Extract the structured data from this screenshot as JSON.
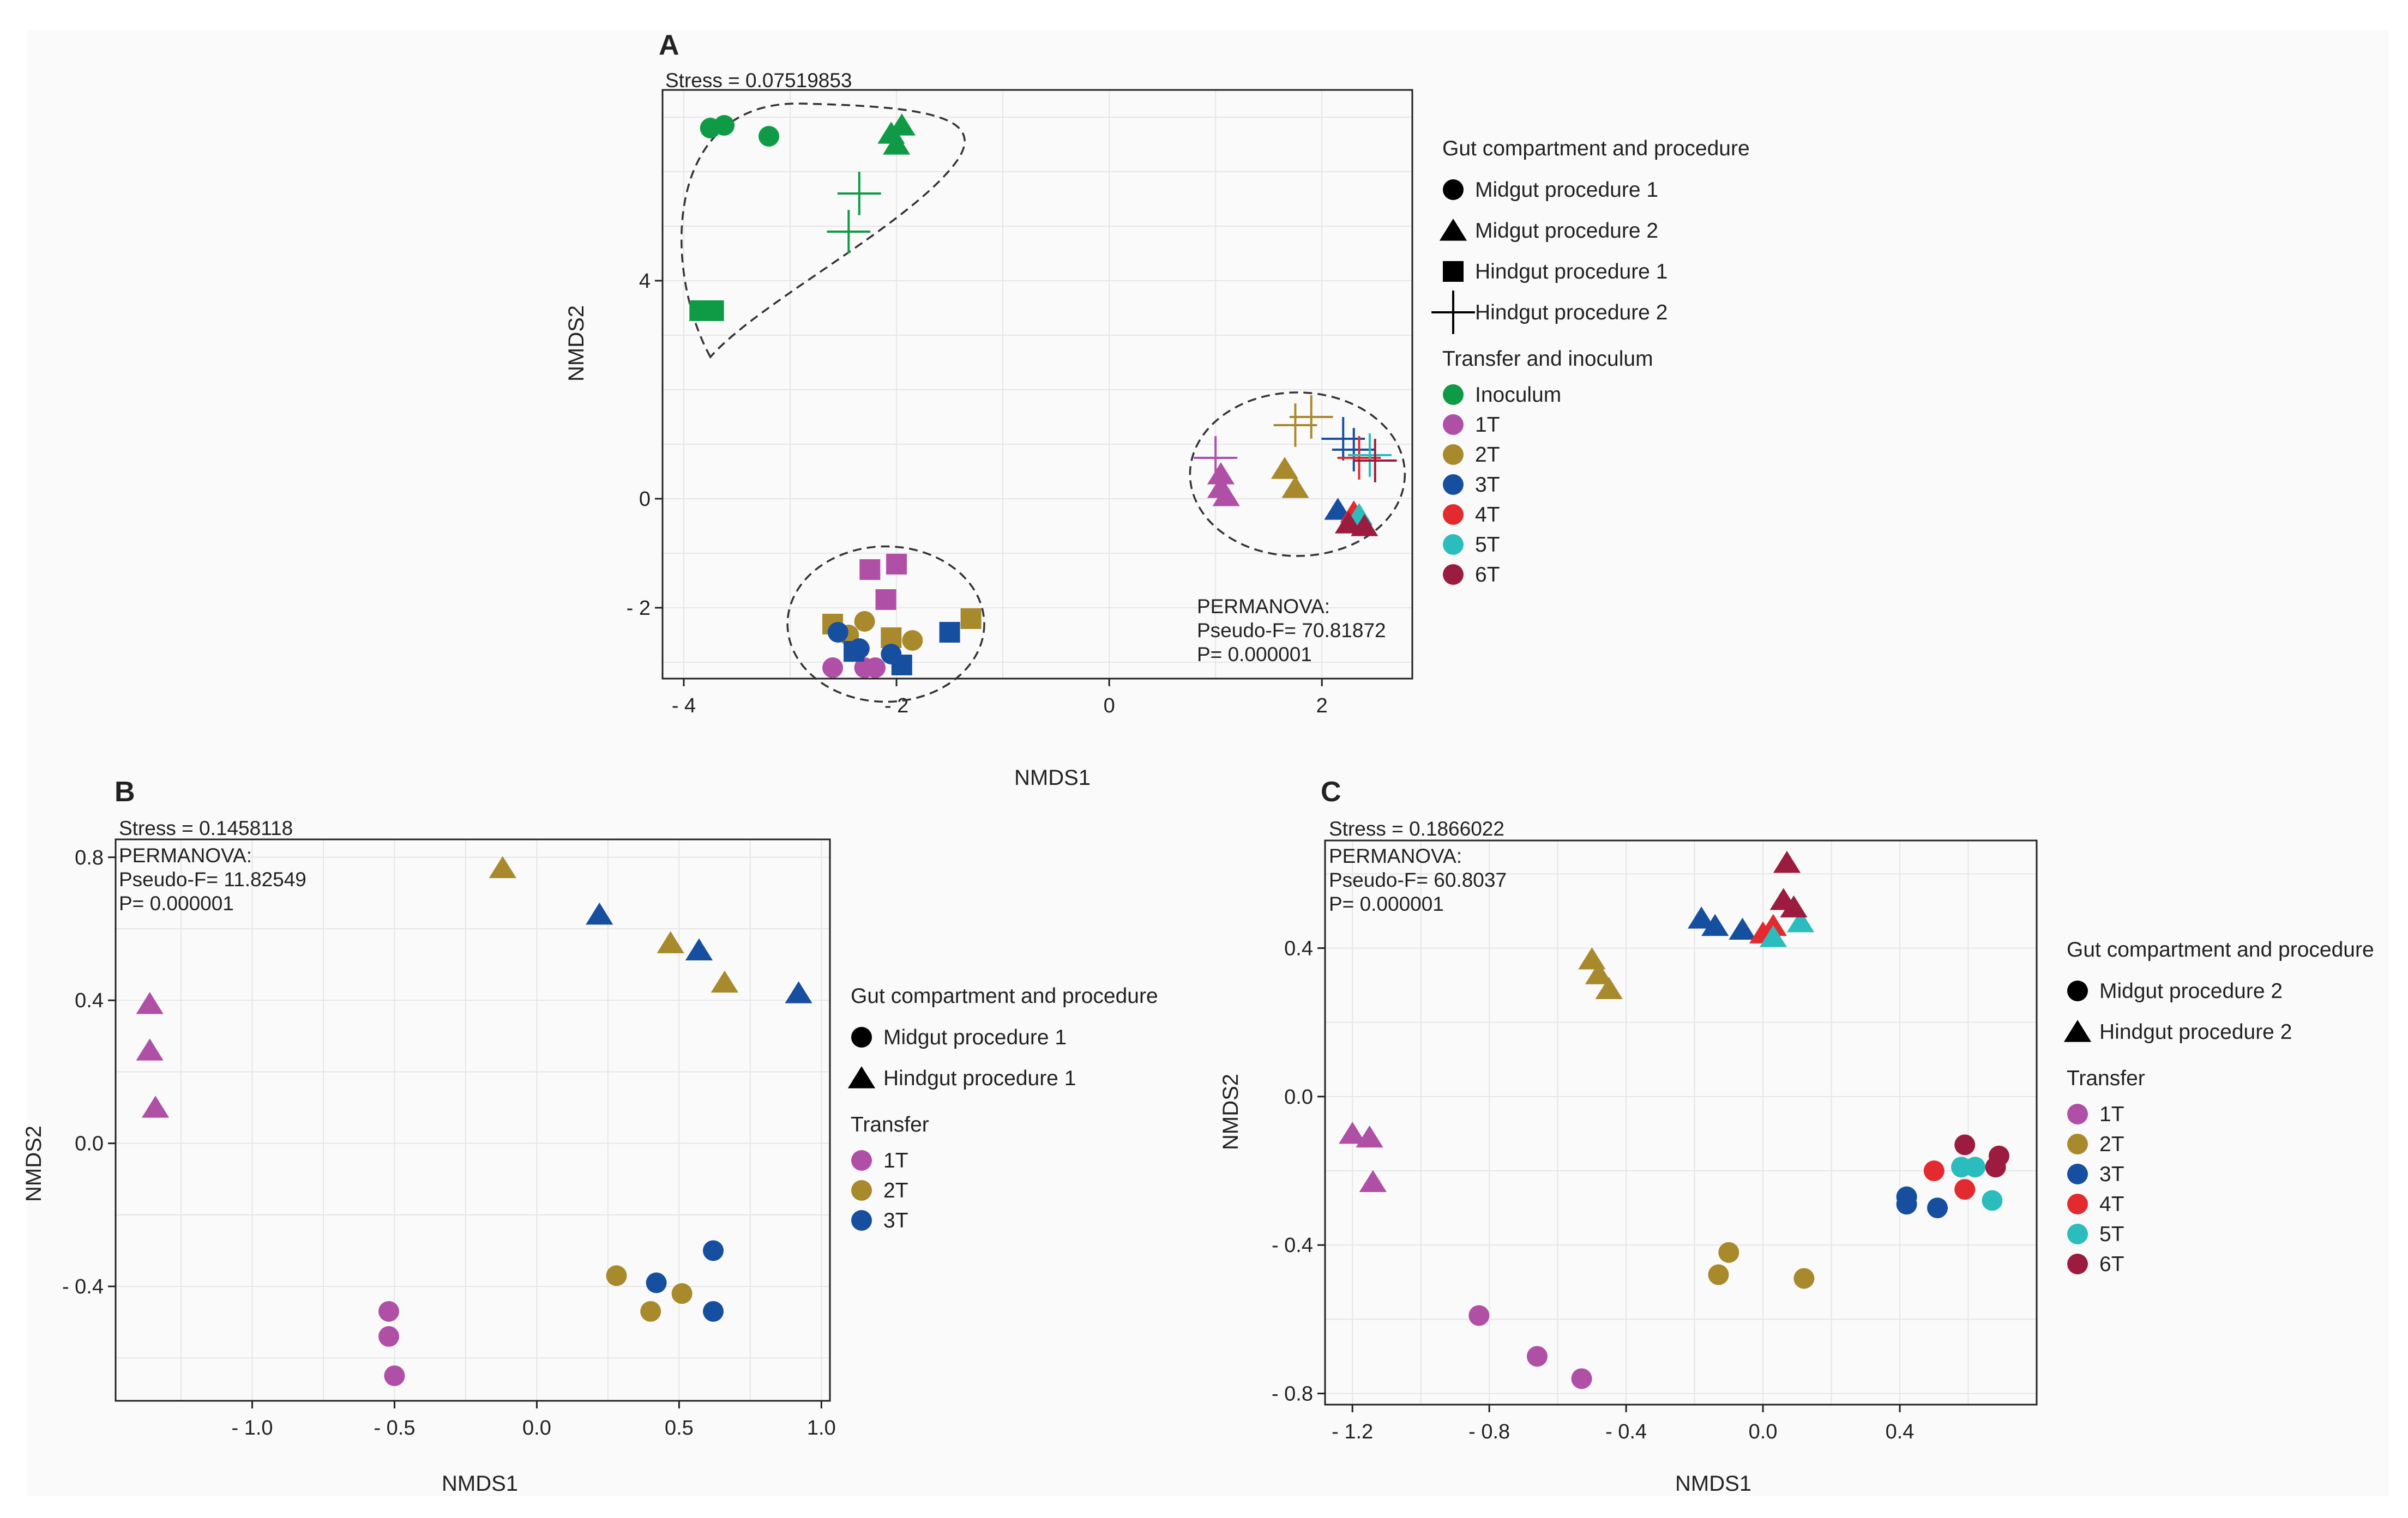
{
  "colors": {
    "Inoculum": "#0f9b45",
    "1T": "#b04fa6",
    "2T": "#a88a2c",
    "3T": "#174fa0",
    "4T": "#e32a2f",
    "5T": "#2bbdbd",
    "6T": "#9b1c3e",
    "black": "#000000"
  },
  "chart_data": [
    {
      "panel": "A",
      "type": "scatter",
      "stress": "Stress = 0.07519853",
      "permanova": [
        "PERMANOVA:",
        "Pseudo-F= 70.81872",
        "P= 0.000001"
      ],
      "xlabel": "NMDS1",
      "ylabel": "NMDS2",
      "xlim": [
        -4.2,
        2.85
      ],
      "ylim": [
        -3.3,
        7.5
      ],
      "xticks": [
        -4,
        -2,
        0,
        2
      ],
      "yticks": [
        -2,
        0,
        4
      ],
      "tick_labels_x": [
        "- 4",
        "- 2",
        "0",
        "2"
      ],
      "tick_labels_y": [
        "- 2",
        "0",
        "4"
      ],
      "legend_shape_title": "Gut compartment and procedure",
      "legend_shapes": [
        {
          "shape": "circle",
          "label": "Midgut procedure 1"
        },
        {
          "shape": "triangle",
          "label": "Midgut procedure 2"
        },
        {
          "shape": "square",
          "label": "Hindgut procedure 1"
        },
        {
          "shape": "cross",
          "label": "Hindgut procedure 2"
        }
      ],
      "legend_color_title": "Transfer and inoculum",
      "legend_colors": [
        {
          "group": "Inoculum",
          "label": "Inoculum"
        },
        {
          "group": "1T",
          "label": "1T"
        },
        {
          "group": "2T",
          "label": "2T"
        },
        {
          "group": "3T",
          "label": "3T"
        },
        {
          "group": "4T",
          "label": "4T"
        },
        {
          "group": "5T",
          "label": "5T"
        },
        {
          "group": "6T",
          "label": "6T"
        }
      ],
      "points": [
        {
          "x": -3.75,
          "y": 6.8,
          "shape": "circle",
          "group": "Inoculum"
        },
        {
          "x": -3.62,
          "y": 6.85,
          "shape": "circle",
          "group": "Inoculum"
        },
        {
          "x": -3.2,
          "y": 6.65,
          "shape": "circle",
          "group": "Inoculum"
        },
        {
          "x": -1.95,
          "y": 6.85,
          "shape": "triangle",
          "group": "Inoculum"
        },
        {
          "x": -2.05,
          "y": 6.7,
          "shape": "triangle",
          "group": "Inoculum"
        },
        {
          "x": -2.0,
          "y": 6.5,
          "shape": "triangle",
          "group": "Inoculum"
        },
        {
          "x": -2.35,
          "y": 5.6,
          "shape": "cross",
          "group": "Inoculum"
        },
        {
          "x": -2.45,
          "y": 4.9,
          "shape": "cross",
          "group": "Inoculum"
        },
        {
          "x": -3.85,
          "y": 3.45,
          "shape": "square",
          "group": "Inoculum"
        },
        {
          "x": -3.72,
          "y": 3.45,
          "shape": "square",
          "group": "Inoculum"
        },
        {
          "x": -2.0,
          "y": -1.2,
          "shape": "square",
          "group": "1T"
        },
        {
          "x": -2.25,
          "y": -1.3,
          "shape": "square",
          "group": "1T"
        },
        {
          "x": -2.1,
          "y": -1.85,
          "shape": "square",
          "group": "1T"
        },
        {
          "x": -2.6,
          "y": -3.1,
          "shape": "circle",
          "group": "1T"
        },
        {
          "x": -2.3,
          "y": -3.1,
          "shape": "circle",
          "group": "1T"
        },
        {
          "x": -2.2,
          "y": -3.1,
          "shape": "circle",
          "group": "1T"
        },
        {
          "x": -2.6,
          "y": -2.3,
          "shape": "square",
          "group": "2T"
        },
        {
          "x": -2.45,
          "y": -2.5,
          "shape": "circle",
          "group": "2T"
        },
        {
          "x": -2.3,
          "y": -2.25,
          "shape": "circle",
          "group": "2T"
        },
        {
          "x": -2.05,
          "y": -2.55,
          "shape": "square",
          "group": "2T"
        },
        {
          "x": -1.85,
          "y": -2.6,
          "shape": "circle",
          "group": "2T"
        },
        {
          "x": -1.3,
          "y": -2.2,
          "shape": "square",
          "group": "2T"
        },
        {
          "x": -2.55,
          "y": -2.45,
          "shape": "circle",
          "group": "3T"
        },
        {
          "x": -2.35,
          "y": -2.75,
          "shape": "circle",
          "group": "3T"
        },
        {
          "x": -2.4,
          "y": -2.8,
          "shape": "square",
          "group": "3T"
        },
        {
          "x": -2.05,
          "y": -2.85,
          "shape": "circle",
          "group": "3T"
        },
        {
          "x": -1.95,
          "y": -3.05,
          "shape": "square",
          "group": "3T"
        },
        {
          "x": -1.5,
          "y": -2.45,
          "shape": "square",
          "group": "3T"
        },
        {
          "x": 1.0,
          "y": 0.75,
          "shape": "cross",
          "group": "1T"
        },
        {
          "x": 1.05,
          "y": 0.45,
          "shape": "triangle",
          "group": "1T"
        },
        {
          "x": 1.05,
          "y": 0.2,
          "shape": "triangle",
          "group": "1T"
        },
        {
          "x": 1.1,
          "y": 0.05,
          "shape": "triangle",
          "group": "1T"
        },
        {
          "x": 1.75,
          "y": 1.35,
          "shape": "cross",
          "group": "2T"
        },
        {
          "x": 1.9,
          "y": 1.5,
          "shape": "cross",
          "group": "2T"
        },
        {
          "x": 1.65,
          "y": 0.55,
          "shape": "triangle",
          "group": "2T"
        },
        {
          "x": 1.75,
          "y": 0.2,
          "shape": "triangle",
          "group": "2T"
        },
        {
          "x": 2.2,
          "y": 1.1,
          "shape": "cross",
          "group": "3T"
        },
        {
          "x": 2.3,
          "y": 0.9,
          "shape": "cross",
          "group": "3T"
        },
        {
          "x": 2.15,
          "y": -0.2,
          "shape": "triangle",
          "group": "3T"
        },
        {
          "x": 2.3,
          "y": -0.35,
          "shape": "triangle",
          "group": "3T"
        },
        {
          "x": 2.35,
          "y": 0.75,
          "shape": "cross",
          "group": "4T"
        },
        {
          "x": 2.3,
          "y": -0.25,
          "shape": "triangle",
          "group": "4T"
        },
        {
          "x": 2.45,
          "y": 0.8,
          "shape": "cross",
          "group": "5T"
        },
        {
          "x": 2.35,
          "y": -0.3,
          "shape": "triangle",
          "group": "5T"
        },
        {
          "x": 2.5,
          "y": 0.7,
          "shape": "cross",
          "group": "6T"
        },
        {
          "x": 2.25,
          "y": -0.45,
          "shape": "triangle",
          "group": "6T"
        },
        {
          "x": 2.4,
          "y": -0.5,
          "shape": "triangle",
          "group": "6T"
        }
      ]
    },
    {
      "panel": "B",
      "type": "scatter",
      "stress": "Stress = 0.1458118",
      "permanova": [
        "PERMANOVA:",
        "Pseudo-F= 11.82549",
        "P= 0.000001"
      ],
      "xlabel": "NMDS1",
      "ylabel": "NMDS2",
      "xlim": [
        -1.48,
        1.03
      ],
      "ylim": [
        -0.72,
        0.85
      ],
      "xticks": [
        -1.0,
        -0.5,
        0.0,
        0.5,
        1.0
      ],
      "yticks": [
        -0.4,
        0.0,
        0.4,
        0.8
      ],
      "tick_labels_x": [
        "- 1.0",
        "- 0.5",
        "0.0",
        "0.5",
        "1.0"
      ],
      "tick_labels_y": [
        "- 0.4",
        "0.0",
        "0.4",
        "0.8"
      ],
      "legend_shape_title": "Gut compartment and procedure",
      "legend_shapes": [
        {
          "shape": "circle",
          "label": "Midgut procedure 1"
        },
        {
          "shape": "triangle",
          "label": "Hindgut procedure 1"
        }
      ],
      "legend_color_title": "Transfer",
      "legend_colors": [
        {
          "group": "1T",
          "label": "1T"
        },
        {
          "group": "2T",
          "label": "2T"
        },
        {
          "group": "3T",
          "label": "3T"
        }
      ],
      "points": [
        {
          "x": -1.36,
          "y": 0.39,
          "shape": "triangle",
          "group": "1T"
        },
        {
          "x": -1.36,
          "y": 0.26,
          "shape": "triangle",
          "group": "1T"
        },
        {
          "x": -1.34,
          "y": 0.1,
          "shape": "triangle",
          "group": "1T"
        },
        {
          "x": -0.52,
          "y": -0.47,
          "shape": "circle",
          "group": "1T"
        },
        {
          "x": -0.52,
          "y": -0.54,
          "shape": "circle",
          "group": "1T"
        },
        {
          "x": -0.5,
          "y": -0.65,
          "shape": "circle",
          "group": "1T"
        },
        {
          "x": -0.12,
          "y": 0.77,
          "shape": "triangle",
          "group": "2T"
        },
        {
          "x": 0.47,
          "y": 0.56,
          "shape": "triangle",
          "group": "2T"
        },
        {
          "x": 0.66,
          "y": 0.45,
          "shape": "triangle",
          "group": "2T"
        },
        {
          "x": 0.28,
          "y": -0.37,
          "shape": "circle",
          "group": "2T"
        },
        {
          "x": 0.4,
          "y": -0.47,
          "shape": "circle",
          "group": "2T"
        },
        {
          "x": 0.51,
          "y": -0.42,
          "shape": "circle",
          "group": "2T"
        },
        {
          "x": 0.22,
          "y": 0.64,
          "shape": "triangle",
          "group": "3T"
        },
        {
          "x": 0.57,
          "y": 0.54,
          "shape": "triangle",
          "group": "3T"
        },
        {
          "x": 0.92,
          "y": 0.42,
          "shape": "triangle",
          "group": "3T"
        },
        {
          "x": 0.42,
          "y": -0.39,
          "shape": "circle",
          "group": "3T"
        },
        {
          "x": 0.62,
          "y": -0.3,
          "shape": "circle",
          "group": "3T"
        },
        {
          "x": 0.62,
          "y": -0.47,
          "shape": "circle",
          "group": "3T"
        }
      ]
    },
    {
      "panel": "C",
      "type": "scatter",
      "stress": "Stress = 0.1866022",
      "permanova": [
        "PERMANOVA:",
        "Pseudo-F= 60.8037",
        "P= 0.000001"
      ],
      "xlabel": "NMDS1",
      "ylabel": "NMDS2",
      "xlim": [
        -1.28,
        0.8
      ],
      "ylim": [
        -0.83,
        0.69
      ],
      "xticks": [
        -1.2,
        -0.8,
        -0.4,
        0.0,
        0.4
      ],
      "yticks": [
        -0.8,
        -0.4,
        0.0,
        0.4
      ],
      "tick_labels_x": [
        "- 1.2",
        "- 0.8",
        "- 0.4",
        "0.0",
        "0.4"
      ],
      "tick_labels_y": [
        "- 0.8",
        "- 0.4",
        "0.0",
        "0.4"
      ],
      "legend_shape_title": "Gut compartment and procedure",
      "legend_shapes": [
        {
          "shape": "circle",
          "label": "Midgut procedure 2"
        },
        {
          "shape": "triangle",
          "label": "Hindgut procedure 2"
        }
      ],
      "legend_color_title": "Transfer",
      "legend_colors": [
        {
          "group": "1T",
          "label": "1T"
        },
        {
          "group": "2T",
          "label": "2T"
        },
        {
          "group": "3T",
          "label": "3T"
        },
        {
          "group": "4T",
          "label": "4T"
        },
        {
          "group": "5T",
          "label": "5T"
        },
        {
          "group": "6T",
          "label": "6T"
        }
      ],
      "points": [
        {
          "x": -1.2,
          "y": -0.1,
          "shape": "triangle",
          "group": "1T"
        },
        {
          "x": -1.15,
          "y": -0.11,
          "shape": "triangle",
          "group": "1T"
        },
        {
          "x": -1.14,
          "y": -0.23,
          "shape": "triangle",
          "group": "1T"
        },
        {
          "x": -0.83,
          "y": -0.59,
          "shape": "circle",
          "group": "1T"
        },
        {
          "x": -0.66,
          "y": -0.7,
          "shape": "circle",
          "group": "1T"
        },
        {
          "x": -0.53,
          "y": -0.76,
          "shape": "circle",
          "group": "1T"
        },
        {
          "x": -0.5,
          "y": 0.37,
          "shape": "triangle",
          "group": "2T"
        },
        {
          "x": -0.48,
          "y": 0.33,
          "shape": "triangle",
          "group": "2T"
        },
        {
          "x": -0.45,
          "y": 0.29,
          "shape": "triangle",
          "group": "2T"
        },
        {
          "x": -0.1,
          "y": -0.42,
          "shape": "circle",
          "group": "2T"
        },
        {
          "x": -0.13,
          "y": -0.48,
          "shape": "circle",
          "group": "2T"
        },
        {
          "x": 0.12,
          "y": -0.49,
          "shape": "circle",
          "group": "2T"
        },
        {
          "x": -0.18,
          "y": 0.48,
          "shape": "triangle",
          "group": "3T"
        },
        {
          "x": -0.14,
          "y": 0.46,
          "shape": "triangle",
          "group": "3T"
        },
        {
          "x": -0.06,
          "y": 0.45,
          "shape": "triangle",
          "group": "3T"
        },
        {
          "x": 0.42,
          "y": -0.27,
          "shape": "circle",
          "group": "3T"
        },
        {
          "x": 0.42,
          "y": -0.29,
          "shape": "circle",
          "group": "3T"
        },
        {
          "x": 0.51,
          "y": -0.3,
          "shape": "circle",
          "group": "3T"
        },
        {
          "x": 0.0,
          "y": 0.44,
          "shape": "triangle",
          "group": "4T"
        },
        {
          "x": 0.03,
          "y": 0.46,
          "shape": "triangle",
          "group": "4T"
        },
        {
          "x": 0.5,
          "y": -0.2,
          "shape": "circle",
          "group": "4T"
        },
        {
          "x": 0.59,
          "y": -0.25,
          "shape": "circle",
          "group": "4T"
        },
        {
          "x": 0.03,
          "y": 0.43,
          "shape": "triangle",
          "group": "5T"
        },
        {
          "x": 0.11,
          "y": 0.47,
          "shape": "triangle",
          "group": "5T"
        },
        {
          "x": 0.58,
          "y": -0.19,
          "shape": "circle",
          "group": "5T"
        },
        {
          "x": 0.62,
          "y": -0.19,
          "shape": "circle",
          "group": "5T"
        },
        {
          "x": 0.67,
          "y": -0.28,
          "shape": "circle",
          "group": "5T"
        },
        {
          "x": 0.07,
          "y": 0.63,
          "shape": "triangle",
          "group": "6T"
        },
        {
          "x": 0.06,
          "y": 0.53,
          "shape": "triangle",
          "group": "6T"
        },
        {
          "x": 0.09,
          "y": 0.51,
          "shape": "triangle",
          "group": "6T"
        },
        {
          "x": 0.59,
          "y": -0.13,
          "shape": "circle",
          "group": "6T"
        },
        {
          "x": 0.69,
          "y": -0.16,
          "shape": "circle",
          "group": "6T"
        },
        {
          "x": 0.68,
          "y": -0.19,
          "shape": "circle",
          "group": "6T"
        }
      ]
    }
  ]
}
